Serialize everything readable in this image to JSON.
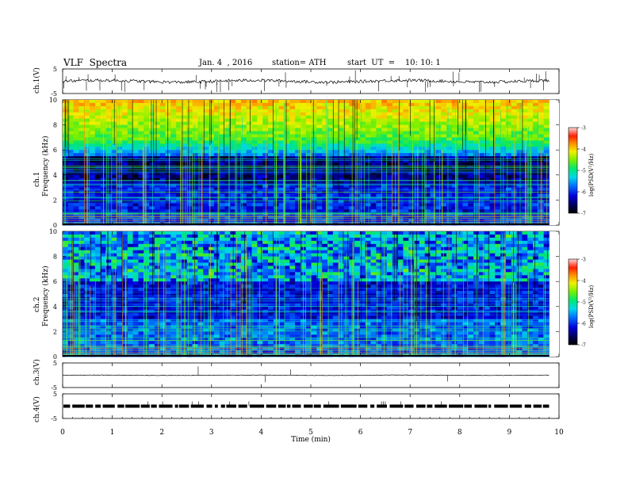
{
  "header": {
    "title": "VLF  Spectra",
    "date": "Jan. 4  , 2016",
    "station": "station= ATH",
    "start": "start  UT  =    10: 10: 1"
  },
  "chart_data": [
    {
      "type": "line",
      "panel": "ch1-waveform",
      "ylabel": "ch.1(V)",
      "ylim": [
        -5,
        5
      ],
      "yticks": [
        "5",
        "-5"
      ],
      "baseline": 0
    },
    {
      "type": "heatmap",
      "panel": "ch1-spectrogram",
      "ylabel": "ch.1\nFrequency  (kHz)",
      "ylabel_top": "ch.1",
      "ylabel_bottom": "Frequency  (kHz)",
      "ylim": [
        0,
        10
      ],
      "yticks": [
        "0",
        "2",
        "4",
        "6",
        "8",
        "10"
      ],
      "xlim": [
        0,
        9.8
      ],
      "colorbar": {
        "label": "log(PSD(V²/Hz)",
        "range": [
          -7,
          -3
        ],
        "ticks": [
          "-3",
          "-4",
          "-5",
          "-6",
          "-7"
        ]
      }
    },
    {
      "type": "heatmap",
      "panel": "ch2-spectrogram",
      "ylabel_top": "ch.2",
      "ylabel_bottom": "Frequency  (kHz)",
      "ylim": [
        0,
        10
      ],
      "yticks": [
        "0",
        "2",
        "4",
        "6",
        "8",
        "10"
      ],
      "xlim": [
        0,
        9.8
      ],
      "colorbar": {
        "label": "log(PSD(V²/Hz)",
        "range": [
          -7,
          -3
        ],
        "ticks": [
          "-3",
          "-4",
          "-5",
          "-6",
          "-7"
        ]
      }
    },
    {
      "type": "line",
      "panel": "ch3-waveform",
      "ylabel": "ch.3(V)",
      "ylim": [
        -5,
        5
      ],
      "yticks": [
        "5",
        "-5"
      ],
      "baseline": 0
    },
    {
      "type": "line",
      "panel": "ch4-waveform",
      "ylabel": "ch.4(V)",
      "ylim": [
        -5,
        5
      ],
      "yticks": [
        "5",
        "-5"
      ],
      "baseline": 0
    }
  ],
  "xaxis": {
    "label": "Time  (min)",
    "range": [
      0,
      10
    ],
    "ticks": [
      "0",
      "1",
      "2",
      "3",
      "4",
      "5",
      "6",
      "7",
      "8",
      "9",
      "10"
    ]
  }
}
